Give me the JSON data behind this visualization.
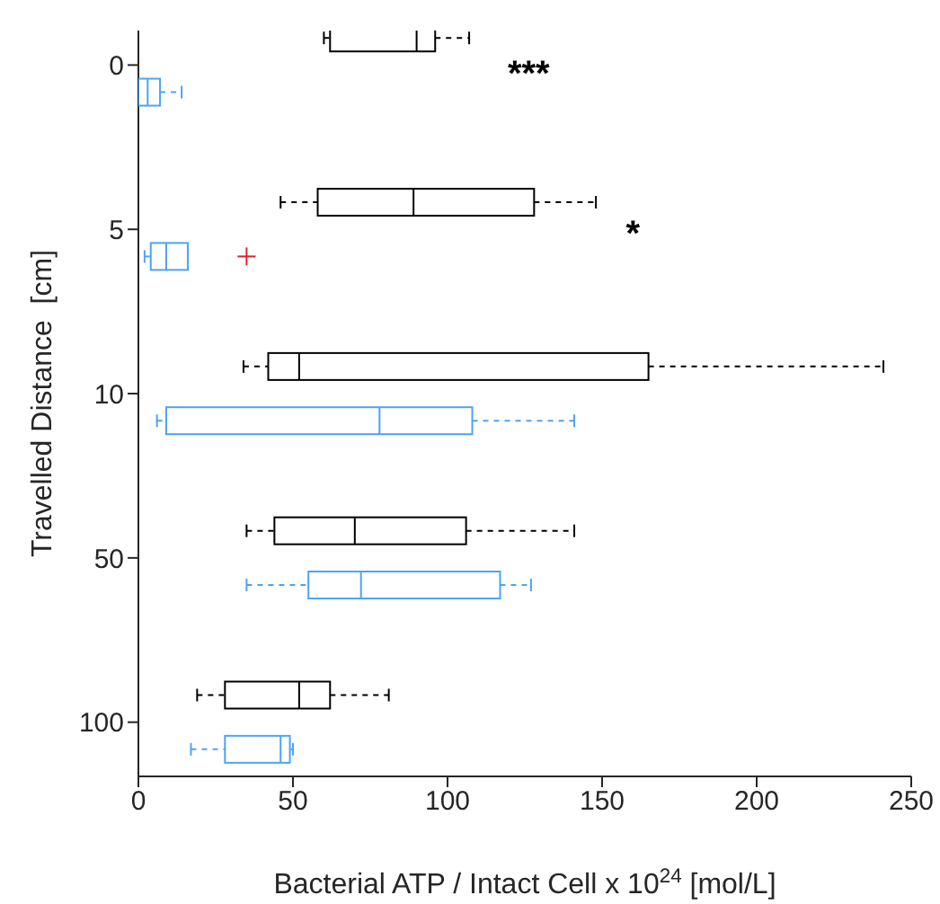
{
  "chart_data": {
    "type": "box",
    "orientation": "horizontal",
    "xlabel": "Bacterial ATP / Intact Cell x 10$^{24}$  [mol/L]",
    "ylabel": "Travelled Distance  [cm]",
    "categories": [
      "0",
      "5",
      "10",
      "50",
      "100"
    ],
    "xlim": [
      0,
      250
    ],
    "xticks": [
      0,
      50,
      100,
      150,
      200,
      250
    ],
    "annotations": [
      "***",
      "*"
    ],
    "series": [
      {
        "color": "#000000",
        "boxes": [
          {
            "low": 60,
            "q1": 62,
            "median": 90,
            "q3": 96,
            "high": 107
          },
          {
            "low": 46,
            "q1": 58,
            "median": 89,
            "q3": 128,
            "high": 148
          },
          {
            "low": 34,
            "q1": 42,
            "median": 52,
            "q3": 165,
            "high": 241
          },
          {
            "low": 35,
            "q1": 44,
            "median": 70,
            "q3": 106,
            "high": 141
          },
          {
            "low": 19,
            "q1": 28,
            "median": 52,
            "q3": 62,
            "high": 81
          }
        ]
      },
      {
        "color": "#4da3f5",
        "boxes": [
          {
            "low": 0,
            "q1": 0,
            "median": 3,
            "q3": 7,
            "high": 14
          },
          {
            "low": 2,
            "q1": 4,
            "median": 9,
            "q3": 16,
            "high": 16,
            "outliers": [
              35
            ]
          },
          {
            "low": 6,
            "q1": 9,
            "median": 78,
            "q3": 108,
            "high": 141
          },
          {
            "low": 35,
            "q1": 55,
            "median": 72,
            "q3": 117,
            "high": 127
          },
          {
            "low": 17,
            "q1": 28,
            "median": 46,
            "q3": 49,
            "high": 50
          }
        ]
      }
    ]
  }
}
